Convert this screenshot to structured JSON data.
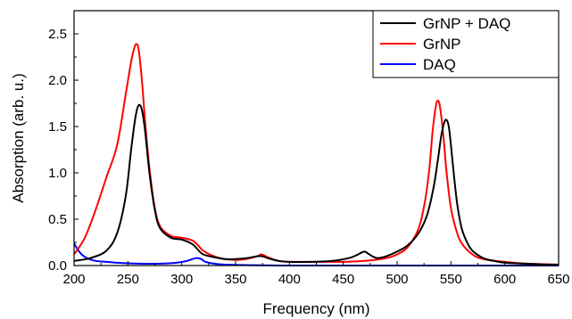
{
  "chart_data": {
    "type": "line",
    "xlabel": "Frequency (nm)",
    "ylabel": "Absorption (arb. u.)",
    "xlim": [
      200,
      650
    ],
    "ylim": [
      0,
      2.75
    ],
    "x_ticks": [
      "200",
      "250",
      "300",
      "350",
      "400",
      "450",
      "500",
      "550",
      "600",
      "650"
    ],
    "y_ticks": [
      "0.0",
      "0.5",
      "1.0",
      "1.5",
      "2.0",
      "2.5"
    ],
    "x_tick_values": [
      200,
      250,
      300,
      350,
      400,
      450,
      500,
      550,
      600,
      650
    ],
    "y_tick_values": [
      0,
      0.5,
      1.0,
      1.5,
      2.0,
      2.5
    ],
    "grid": false,
    "legend_position": "top-right",
    "series": [
      {
        "name": "GrNP + DAQ",
        "color": "#000000",
        "x": [
          200,
          215,
          230,
          240,
          248,
          253,
          257,
          260,
          263,
          266,
          270,
          275,
          280,
          290,
          300,
          310,
          315,
          320,
          330,
          340,
          350,
          360,
          370,
          375,
          380,
          390,
          400,
          420,
          440,
          455,
          462,
          467,
          470,
          473,
          477,
          482,
          490,
          500,
          510,
          520,
          528,
          534,
          538,
          541,
          544,
          546,
          548,
          550,
          553,
          556,
          560,
          565,
          570,
          580,
          590,
          600,
          620,
          640,
          650
        ],
        "y": [
          0.05,
          0.08,
          0.16,
          0.35,
          0.75,
          1.25,
          1.6,
          1.73,
          1.68,
          1.45,
          1.0,
          0.6,
          0.4,
          0.3,
          0.28,
          0.23,
          0.17,
          0.12,
          0.09,
          0.07,
          0.07,
          0.08,
          0.1,
          0.1,
          0.08,
          0.05,
          0.04,
          0.04,
          0.05,
          0.08,
          0.11,
          0.14,
          0.15,
          0.13,
          0.1,
          0.08,
          0.1,
          0.15,
          0.22,
          0.35,
          0.55,
          0.85,
          1.15,
          1.4,
          1.55,
          1.57,
          1.5,
          1.3,
          0.95,
          0.65,
          0.4,
          0.25,
          0.16,
          0.08,
          0.05,
          0.03,
          0.02,
          0.01,
          0.01
        ]
      },
      {
        "name": "GrNP",
        "color": "#ff0000",
        "x": [
          200,
          210,
          220,
          230,
          240,
          248,
          253,
          256,
          258,
          260,
          263,
          266,
          270,
          275,
          280,
          290,
          300,
          310,
          315,
          320,
          330,
          340,
          350,
          360,
          370,
          374,
          380,
          390,
          400,
          420,
          450,
          470,
          490,
          500,
          510,
          520,
          526,
          530,
          533,
          536,
          538,
          540,
          543,
          546,
          550,
          555,
          560,
          570,
          580,
          600,
          620,
          650
        ],
        "y": [
          0.12,
          0.3,
          0.6,
          0.95,
          1.3,
          1.85,
          2.2,
          2.35,
          2.39,
          2.33,
          2.0,
          1.55,
          1.05,
          0.62,
          0.42,
          0.32,
          0.3,
          0.27,
          0.22,
          0.16,
          0.1,
          0.07,
          0.06,
          0.07,
          0.1,
          0.12,
          0.09,
          0.05,
          0.04,
          0.04,
          0.04,
          0.05,
          0.08,
          0.12,
          0.2,
          0.4,
          0.7,
          1.05,
          1.45,
          1.72,
          1.78,
          1.7,
          1.4,
          1.0,
          0.62,
          0.38,
          0.24,
          0.12,
          0.07,
          0.04,
          0.02,
          0.01
        ]
      },
      {
        "name": "DAQ",
        "color": "#0000ff",
        "x": [
          200,
          203,
          207,
          212,
          220,
          230,
          240,
          260,
          280,
          295,
          305,
          310,
          314,
          318,
          322,
          330,
          340,
          360,
          400,
          500,
          650
        ],
        "y": [
          0.24,
          0.18,
          0.12,
          0.08,
          0.05,
          0.04,
          0.03,
          0.02,
          0.02,
          0.03,
          0.05,
          0.07,
          0.08,
          0.07,
          0.04,
          0.02,
          0.01,
          0.005,
          0.0,
          0.0,
          0.0
        ]
      }
    ]
  }
}
